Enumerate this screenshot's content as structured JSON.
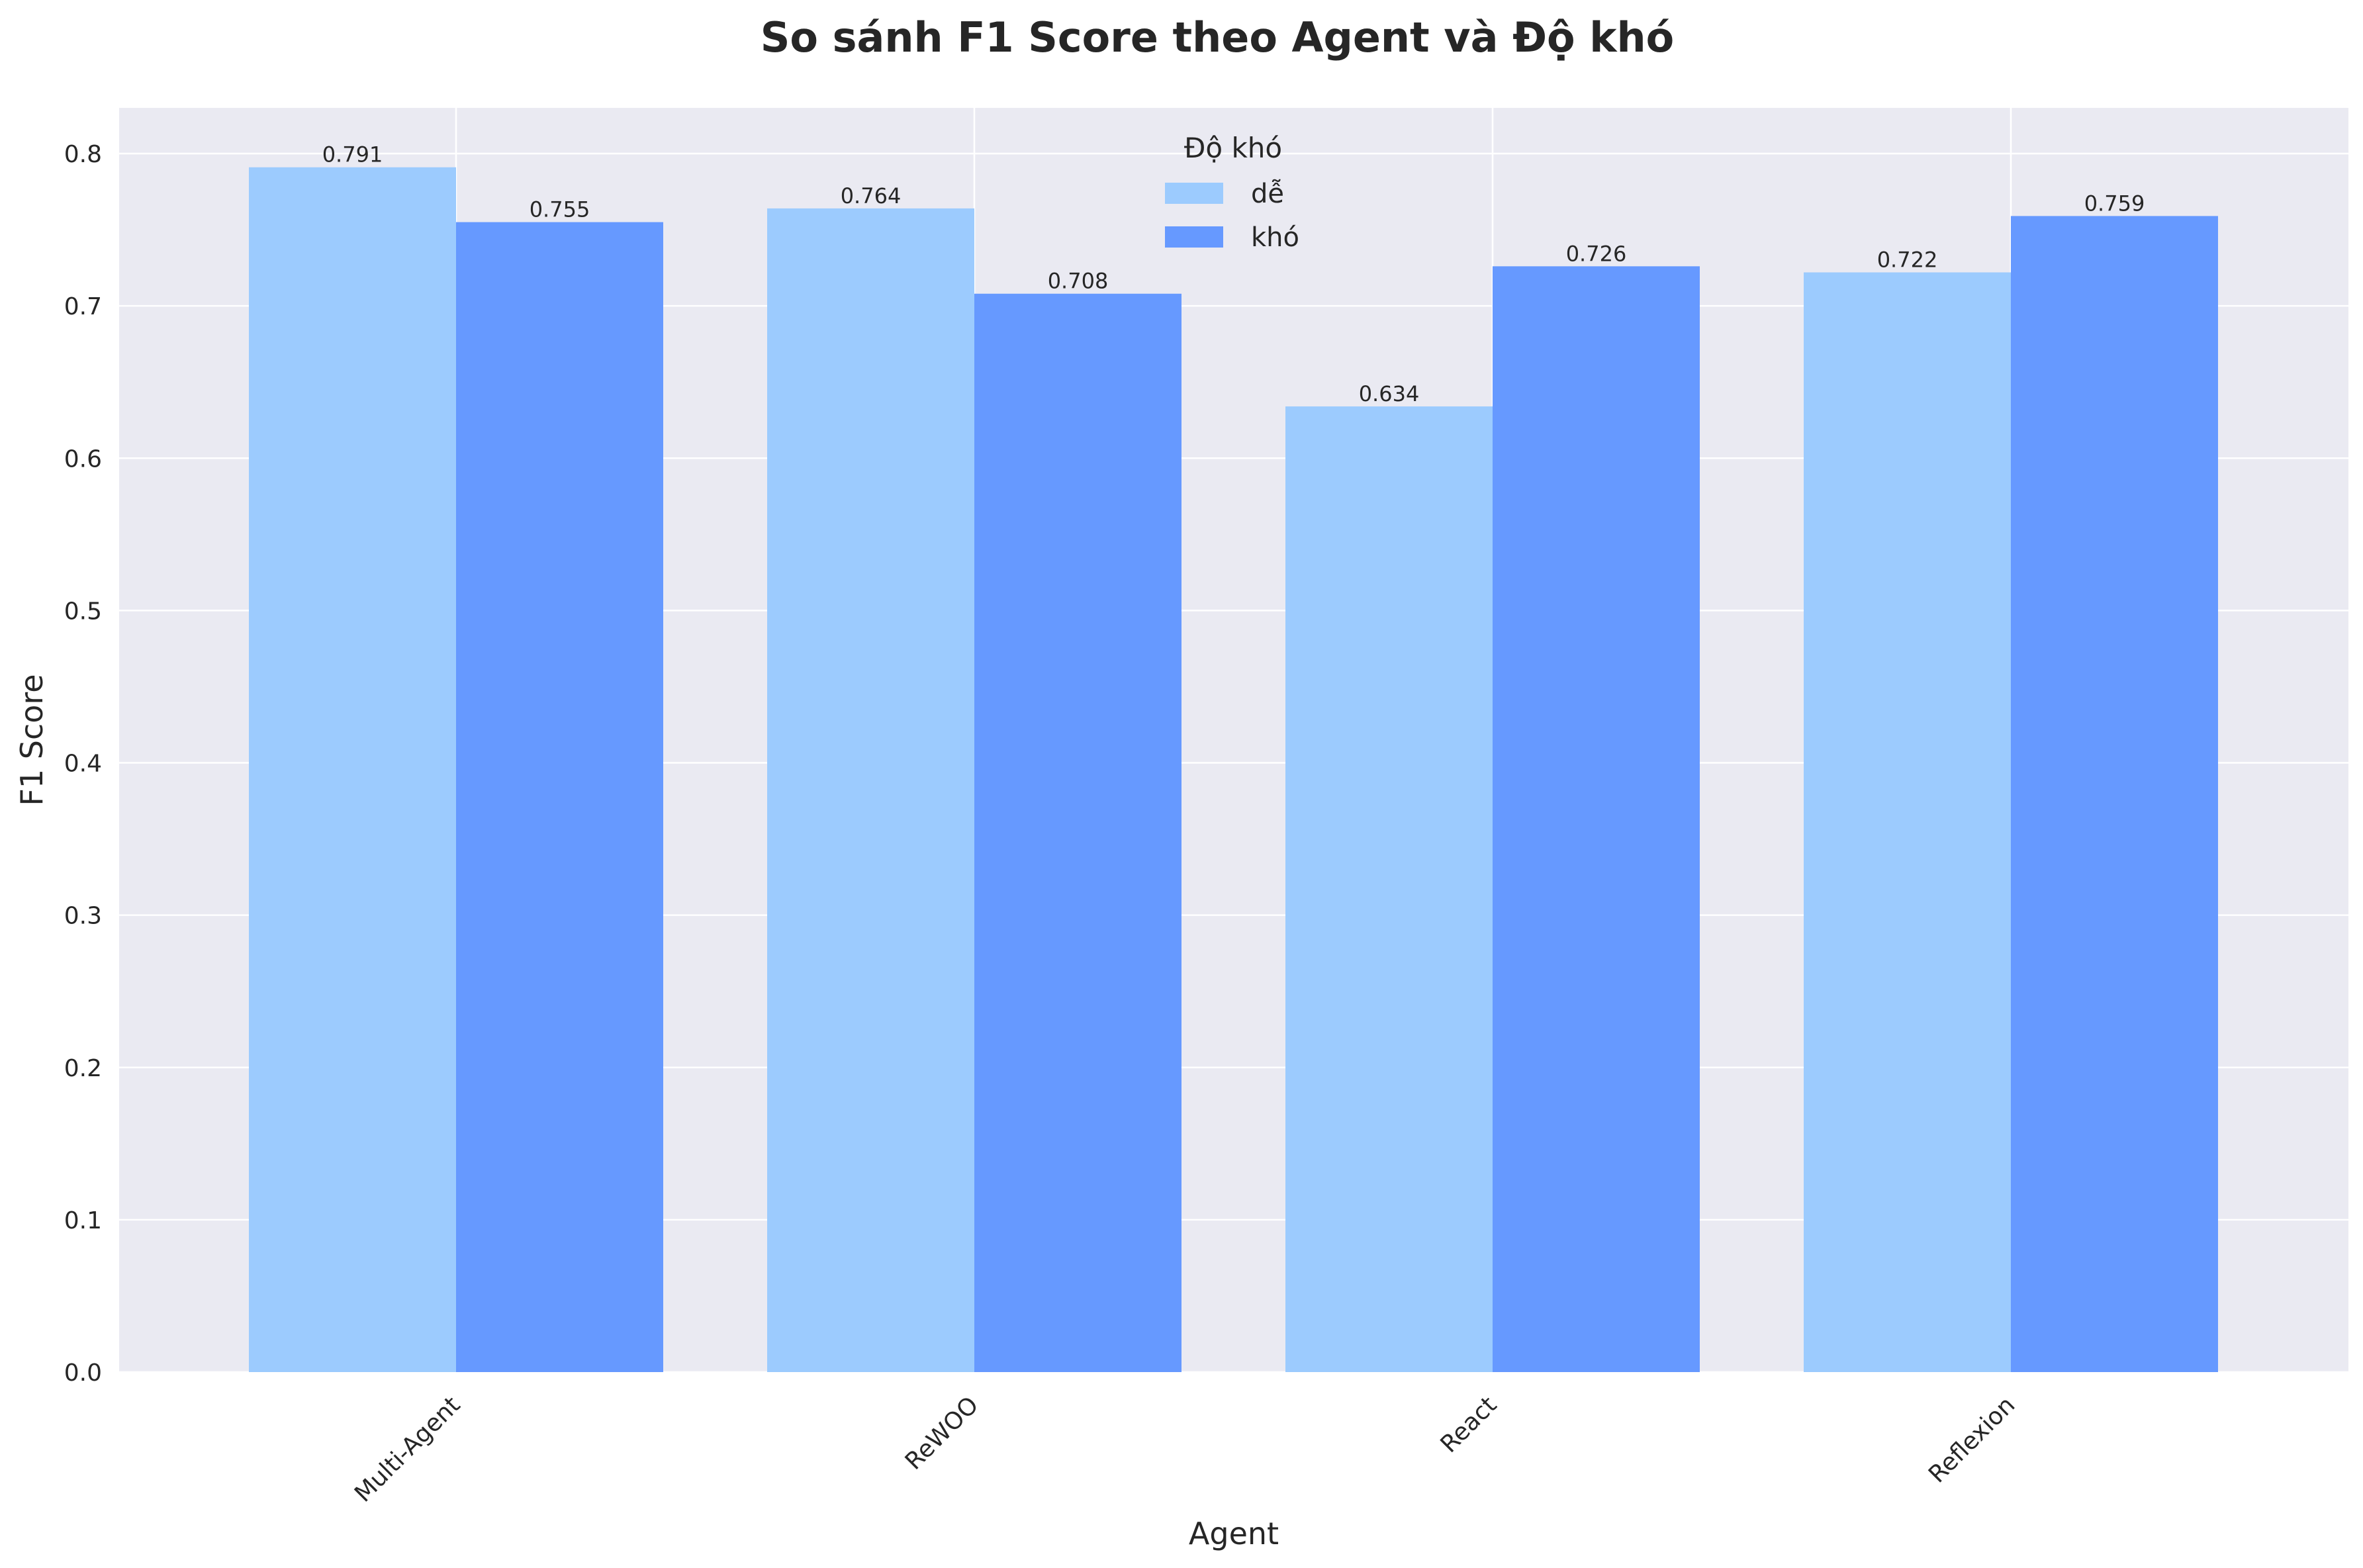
{
  "chart_data": {
    "type": "bar",
    "title": "So sánh F1 Score theo Agent và Độ khó",
    "xlabel": "Agent",
    "ylabel": "F1 Score",
    "categories": [
      "Multi-Agent",
      "ReWOO",
      "React",
      "Reflexion"
    ],
    "series": [
      {
        "name": "dễ",
        "values": [
          0.791,
          0.764,
          0.634,
          0.722
        ],
        "labels": [
          "0.791",
          "0.764",
          "0.634",
          "0.722"
        ],
        "color": "#9ccbfe"
      },
      {
        "name": "khó",
        "values": [
          0.755,
          0.708,
          0.726,
          0.759
        ],
        "labels": [
          "0.755",
          "0.708",
          "0.726",
          "0.759"
        ],
        "color": "#6699ff"
      }
    ],
    "ylim": [
      0,
      0.83
    ],
    "yticks": [
      0.0,
      0.1,
      0.2,
      0.3,
      0.4,
      0.5,
      0.6,
      0.7,
      0.8
    ],
    "ytick_labels": [
      "0.0",
      "0.1",
      "0.2",
      "0.3",
      "0.4",
      "0.5",
      "0.6",
      "0.7",
      "0.8"
    ],
    "legend": {
      "title": "Độ khó",
      "position": "top-center"
    },
    "grid": true,
    "background_color": "#eaeaf2",
    "grid_color": "#ffffff"
  }
}
